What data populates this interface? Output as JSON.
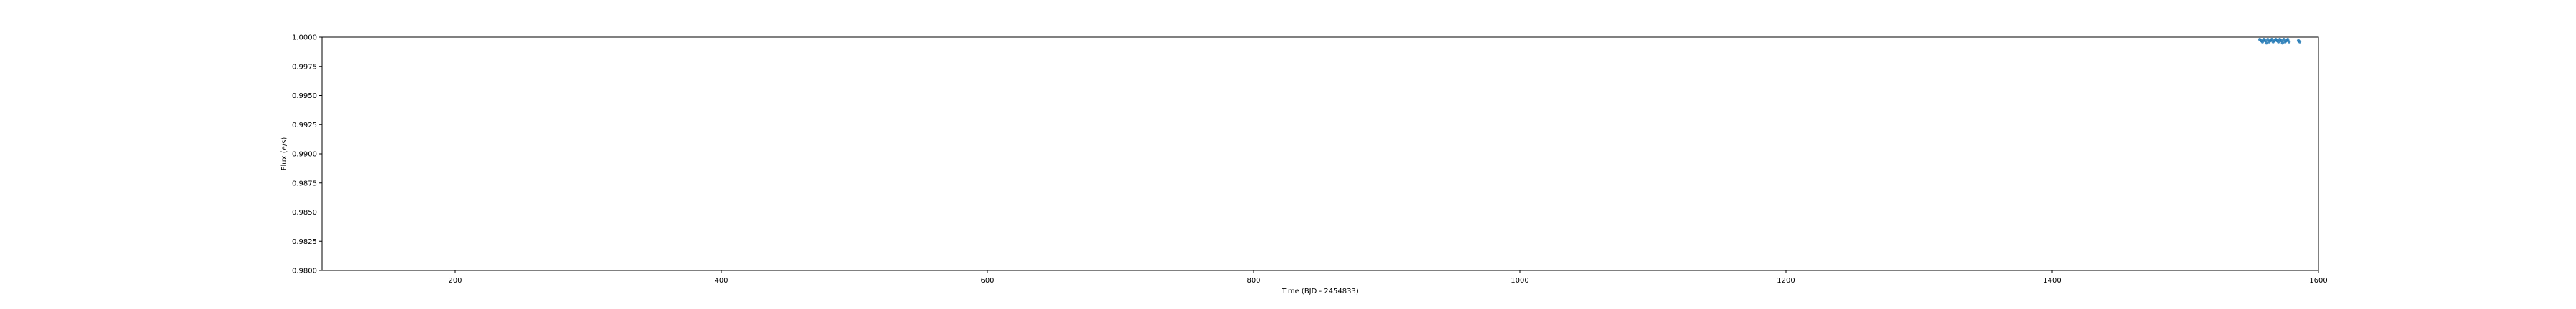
{
  "chart_data": {
    "type": "scatter",
    "title": "",
    "xlabel": "Time (BJD - 2454833)",
    "ylabel": "Flux (e/s)",
    "xlim": [
      100,
      1600
    ],
    "ylim": [
      0.98,
      1.0
    ],
    "x_ticks": [
      200,
      400,
      600,
      800,
      1000,
      1200,
      1400,
      1600
    ],
    "y_ticks": [
      {
        "value": 0.98,
        "label": "0.9800"
      },
      {
        "value": 0.9825,
        "label": "0.9825"
      },
      {
        "value": 0.985,
        "label": "0.9850"
      },
      {
        "value": 0.9875,
        "label": "0.9875"
      },
      {
        "value": 0.99,
        "label": "0.9900"
      },
      {
        "value": 0.9925,
        "label": "0.9925"
      },
      {
        "value": 0.995,
        "label": "0.9950"
      },
      {
        "value": 0.9975,
        "label": "0.9975"
      },
      {
        "value": 1.0,
        "label": "1.0000"
      }
    ],
    "grid": false,
    "legend": "none",
    "colors": {
      "series": "#1f77b4",
      "axes": "#000000"
    },
    "series": [
      {
        "x": [
          1556,
          1557,
          1558,
          1559,
          1560,
          1561,
          1562,
          1563,
          1564,
          1565,
          1566,
          1567,
          1568,
          1569,
          1570,
          1571,
          1572,
          1573,
          1574,
          1575,
          1576,
          1577,
          1578,
          1585,
          1586
        ],
        "y": [
          0.9998,
          0.9997,
          0.9996,
          0.9998,
          0.9997,
          0.9995,
          0.9998,
          0.9996,
          0.9997,
          0.9998,
          0.9996,
          0.9997,
          0.9998,
          0.9997,
          0.9996,
          0.9998,
          0.9997,
          0.9995,
          0.9998,
          0.9996,
          0.9997,
          0.9998,
          0.9996,
          0.9997,
          0.9996
        ]
      }
    ]
  }
}
